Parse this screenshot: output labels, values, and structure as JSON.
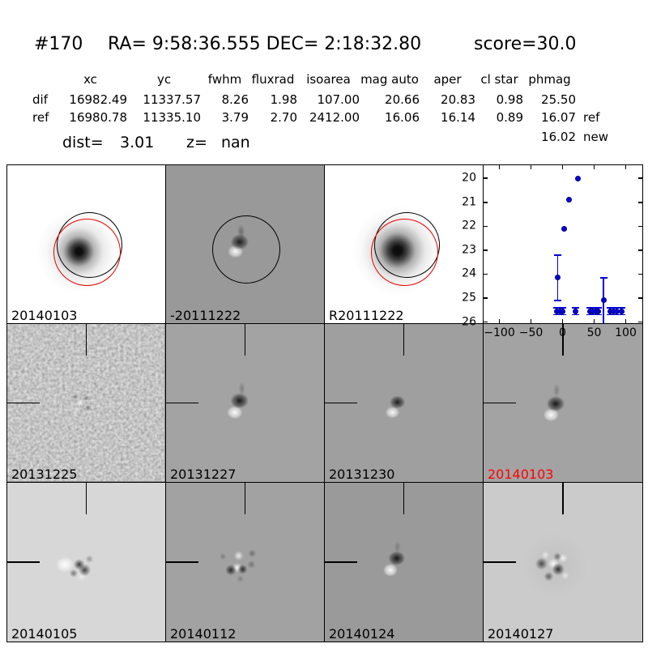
{
  "header": {
    "id": "#170",
    "coords": "RA= 9:58:36.555 DEC= 2:18:32.80",
    "score": "score=30.0"
  },
  "table": {
    "headers": [
      "xc",
      "yc",
      "fwhm",
      "fluxrad",
      "isoarea",
      "mag auto",
      "aper",
      "cl star",
      "phmag"
    ],
    "rows": [
      {
        "label": "dif",
        "values": [
          "16982.49",
          "11337.57",
          "8.26",
          "1.98",
          "107.00",
          "20.66",
          "20.83",
          "0.98",
          "25.50"
        ],
        "suffix": ""
      },
      {
        "label": "ref",
        "values": [
          "16980.78",
          "11335.10",
          "3.79",
          "2.70",
          "2412.00",
          "16.06",
          "16.14",
          "0.89",
          "16.07"
        ],
        "suffix": "ref"
      }
    ],
    "extra_value": "16.02",
    "extra_suffix": "new",
    "dist_label": "dist=",
    "dist_value": "3.01",
    "z_label": "z=",
    "z_value": "nan"
  },
  "panels": [
    {
      "label": "20140103"
    },
    {
      "label": "-20111222"
    },
    {
      "label": "R20111222"
    },
    {
      "label": ""
    },
    {
      "label": "20131225"
    },
    {
      "label": "20131227"
    },
    {
      "label": "20131230"
    },
    {
      "label": "20140103",
      "highlight": true
    },
    {
      "label": "20140105"
    },
    {
      "label": "20140112"
    },
    {
      "label": "20140124"
    },
    {
      "label": "20140127"
    }
  ],
  "colors": {
    "marker_blue": "#0000dd",
    "highlight_red": "#ff0000"
  },
  "chart_data": {
    "type": "scatter",
    "title": "",
    "xlabel": "",
    "ylabel": "",
    "xlim": [
      -125,
      125
    ],
    "ylim_top": 19.45,
    "ylim_bottom": 26.05,
    "y_inverted": true,
    "grid": false,
    "xticks": [
      -100,
      -50,
      0,
      50,
      100
    ],
    "yticks": [
      20,
      21,
      22,
      23,
      24,
      25,
      26
    ],
    "points": [
      {
        "x": 24,
        "y": 20.0
      },
      {
        "x": 10,
        "y": 20.9
      },
      {
        "x": 3,
        "y": 22.1
      },
      {
        "x": -8,
        "y": 24.15,
        "err": [
          23.2,
          25.1
        ]
      },
      {
        "x": 65,
        "y": 25.1,
        "err": [
          24.15,
          26.35
        ]
      },
      {
        "x": -9,
        "y": 25.55,
        "err": [
          25.4,
          25.7
        ]
      },
      {
        "x": -4,
        "y": 25.55,
        "err": [
          25.4,
          25.7
        ]
      },
      {
        "x": 0,
        "y": 25.55,
        "err": [
          25.4,
          25.7
        ]
      },
      {
        "x": 21,
        "y": 25.55,
        "err": [
          25.4,
          25.7
        ]
      },
      {
        "x": 44,
        "y": 25.55,
        "err": [
          25.4,
          25.7
        ]
      },
      {
        "x": 48,
        "y": 25.55,
        "err": [
          25.4,
          25.7
        ]
      },
      {
        "x": 52,
        "y": 25.55,
        "err": [
          25.4,
          25.7
        ]
      },
      {
        "x": 56,
        "y": 25.55,
        "err": [
          25.4,
          25.7
        ]
      },
      {
        "x": 75,
        "y": 25.55,
        "err": [
          25.4,
          25.7
        ]
      },
      {
        "x": 81,
        "y": 25.55,
        "err": [
          25.4,
          25.7
        ]
      },
      {
        "x": 86,
        "y": 25.55,
        "err": [
          25.4,
          25.7
        ]
      },
      {
        "x": 93,
        "y": 25.55,
        "err": [
          25.4,
          25.7
        ]
      }
    ]
  }
}
